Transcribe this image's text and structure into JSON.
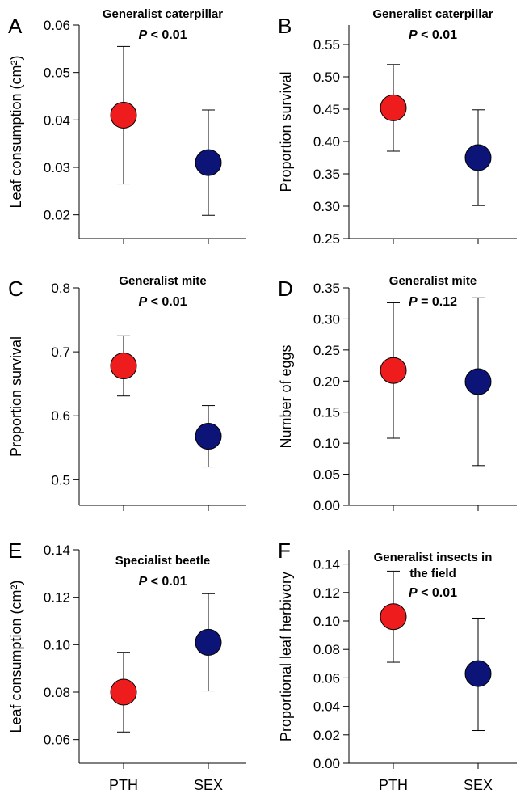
{
  "colors": {
    "PTH": "#ee1c1c",
    "SEX": "#0c1478",
    "axis": "#000000"
  },
  "chart_data": [
    {
      "panel": "A",
      "type": "scatter",
      "title": "Generalist caterpillar",
      "stat": "P < 0.01",
      "ylabel": "Leaf consumption (cm²)",
      "categories": [
        "PTH",
        "SEX"
      ],
      "ylim": [
        0.015,
        0.06
      ],
      "yticks": [
        "0.02",
        "0.03",
        "0.04",
        "0.05",
        "0.06"
      ],
      "show_xticklabels": false,
      "points": [
        {
          "x": "PTH",
          "y": 0.041,
          "err_low": 0.0265,
          "err_high": 0.0555
        },
        {
          "x": "SEX",
          "y": 0.031,
          "err_low": 0.0199,
          "err_high": 0.0421
        }
      ]
    },
    {
      "panel": "B",
      "type": "scatter",
      "title": "Generalist caterpillar",
      "stat": "P < 0.01",
      "ylabel": "Proportion survival",
      "categories": [
        "PTH",
        "SEX"
      ],
      "ylim": [
        0.25,
        0.58
      ],
      "yticks": [
        "0.25",
        "0.30",
        "0.35",
        "0.40",
        "0.45",
        "0.50",
        "0.55"
      ],
      "show_xticklabels": false,
      "points": [
        {
          "x": "PTH",
          "y": 0.452,
          "err_low": 0.385,
          "err_high": 0.519
        },
        {
          "x": "SEX",
          "y": 0.375,
          "err_low": 0.301,
          "err_high": 0.449
        }
      ]
    },
    {
      "panel": "C",
      "type": "scatter",
      "title": "Generalist mite",
      "stat": "P < 0.01",
      "ylabel": "Proportion survival",
      "categories": [
        "PTH",
        "SEX"
      ],
      "ylim": [
        0.46,
        0.8
      ],
      "yticks": [
        "0.5",
        "0.6",
        "0.7",
        "0.8"
      ],
      "show_xticklabels": false,
      "points": [
        {
          "x": "PTH",
          "y": 0.678,
          "err_low": 0.631,
          "err_high": 0.725
        },
        {
          "x": "SEX",
          "y": 0.568,
          "err_low": 0.52,
          "err_high": 0.616
        }
      ]
    },
    {
      "panel": "D",
      "type": "scatter",
      "title": "Generalist mite",
      "stat": "P = 0.12",
      "ylabel": "Number of eggs",
      "categories": [
        "PTH",
        "SEX"
      ],
      "ylim": [
        0,
        0.35
      ],
      "yticks": [
        "0.00",
        "0.05",
        "0.10",
        "0.15",
        "0.20",
        "0.25",
        "0.30",
        "0.35"
      ],
      "show_xticklabels": false,
      "points": [
        {
          "x": "PTH",
          "y": 0.217,
          "err_low": 0.108,
          "err_high": 0.326
        },
        {
          "x": "SEX",
          "y": 0.199,
          "err_low": 0.064,
          "err_high": 0.334
        }
      ]
    },
    {
      "panel": "E",
      "type": "scatter",
      "title": "Specialist beetle",
      "stat": "P < 0.01",
      "ylabel": "Leaf consumption (cm²)",
      "categories": [
        "PTH",
        "SEX"
      ],
      "ylim": [
        0.05,
        0.14
      ],
      "yticks": [
        "0.06",
        "0.08",
        "0.10",
        "0.12",
        "0.14"
      ],
      "show_xticklabels": true,
      "points": [
        {
          "x": "PTH",
          "y": 0.08,
          "err_low": 0.0632,
          "err_high": 0.0968
        },
        {
          "x": "SEX",
          "y": 0.101,
          "err_low": 0.0805,
          "err_high": 0.1215
        }
      ]
    },
    {
      "panel": "F",
      "type": "scatter",
      "title": "Generalist insects in the field",
      "stat": "P < 0.01",
      "ylabel": "Proportional leaf herbivory",
      "categories": [
        "PTH",
        "SEX"
      ],
      "ylim": [
        0,
        0.15
      ],
      "yticks": [
        "0.00",
        "0.02",
        "0.04",
        "0.06",
        "0.08",
        "0.10",
        "0.12",
        "0.14"
      ],
      "show_xticklabels": true,
      "points": [
        {
          "x": "PTH",
          "y": 0.103,
          "err_low": 0.071,
          "err_high": 0.135
        },
        {
          "x": "SEX",
          "y": 0.063,
          "err_low": 0.023,
          "err_high": 0.102
        }
      ]
    }
  ]
}
